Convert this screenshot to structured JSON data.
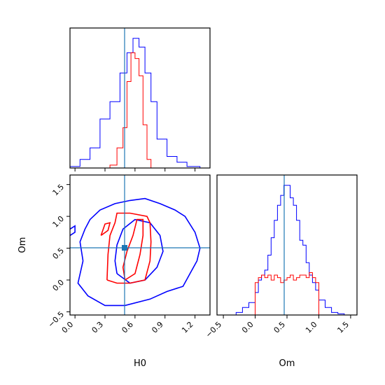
{
  "colors": {
    "series_a": "#0000ff",
    "series_b": "#ff0000",
    "truth": "#1f77b4",
    "frame": "#000000"
  },
  "chart_data": {
    "type": "corner",
    "parameters": [
      "H0",
      "Om"
    ],
    "truth": {
      "H0": 0.48,
      "Om": 0.5
    },
    "panels": [
      {
        "id": "hist_H0",
        "type": "histogram-step",
        "xlim": [
          -0.05,
          1.35
        ],
        "x_ticks": [
          0.0,
          0.3,
          0.6,
          0.9,
          1.2
        ],
        "show_tick_labels": false,
        "series": [
          {
            "color": "series_a",
            "edges": [
              -0.05,
              0.05,
              0.15,
              0.25,
              0.35,
              0.45,
              0.52,
              0.58,
              0.64,
              0.7,
              0.76,
              0.82,
              0.92,
              1.02,
              1.12,
              1.25
            ],
            "counts": [
              0.5,
              3,
              7,
              17,
              23,
              33,
              40,
              45,
              42,
              33,
              23,
              10,
              4,
              2,
              0.5
            ]
          },
          {
            "color": "series_b",
            "edges": [
              0.35,
              0.42,
              0.48,
              0.52,
              0.56,
              0.6,
              0.64,
              0.68,
              0.72,
              0.76
            ],
            "counts": [
              1,
              7,
              14,
              30,
              40,
              38,
              32,
              15,
              3
            ]
          }
        ]
      },
      {
        "id": "scatter_H0_Om",
        "type": "contour",
        "xlim": [
          -0.05,
          1.35
        ],
        "ylim": [
          -0.55,
          1.65
        ],
        "x_ticks": [
          "0.0",
          "0.3",
          "0.6",
          "0.9",
          "1.2"
        ],
        "y_ticks": [
          "−0.5",
          "0.0",
          "0.5",
          "1.0",
          "1.5"
        ],
        "xlabel": "H0",
        "ylabel": "Om",
        "contours": [
          {
            "color": "series_a",
            "level": "outer",
            "points": [
              [
                0.08,
                0.3
              ],
              [
                0.03,
                -0.05
              ],
              [
                0.13,
                -0.25
              ],
              [
                0.3,
                -0.4
              ],
              [
                0.5,
                -0.4
              ],
              [
                0.75,
                -0.3
              ],
              [
                0.92,
                -0.18
              ],
              [
                1.08,
                -0.1
              ],
              [
                1.15,
                0.1
              ],
              [
                1.22,
                0.3
              ],
              [
                1.25,
                0.5
              ],
              [
                1.2,
                0.75
              ],
              [
                1.1,
                1.0
              ],
              [
                1.0,
                1.1
              ],
              [
                0.85,
                1.2
              ],
              [
                0.7,
                1.28
              ],
              [
                0.55,
                1.25
              ],
              [
                0.4,
                1.2
              ],
              [
                0.25,
                1.1
              ],
              [
                0.15,
                0.95
              ],
              [
                0.1,
                0.8
              ],
              [
                0.05,
                0.6
              ],
              [
                0.08,
                0.3
              ]
            ]
          },
          {
            "color": "series_a",
            "level": "inner",
            "points": [
              [
                0.42,
                0.1
              ],
              [
                0.55,
                -0.05
              ],
              [
                0.7,
                0.0
              ],
              [
                0.82,
                0.2
              ],
              [
                0.88,
                0.45
              ],
              [
                0.85,
                0.7
              ],
              [
                0.75,
                0.9
              ],
              [
                0.6,
                0.95
              ],
              [
                0.48,
                0.8
              ],
              [
                0.42,
                0.55
              ],
              [
                0.4,
                0.3
              ],
              [
                0.42,
                0.1
              ]
            ]
          },
          {
            "color": "series_a",
            "level": "outer",
            "points": [
              [
                -0.05,
                0.8
              ],
              [
                0.0,
                0.85
              ],
              [
                0.0,
                0.75
              ],
              [
                -0.05,
                0.7
              ]
            ]
          },
          {
            "color": "series_b",
            "level": "outer",
            "points": [
              [
                0.32,
                0.0
              ],
              [
                0.42,
                -0.05
              ],
              [
                0.55,
                -0.05
              ],
              [
                0.7,
                0.0
              ],
              [
                0.75,
                0.3
              ],
              [
                0.76,
                0.6
              ],
              [
                0.75,
                0.9
              ],
              [
                0.72,
                1.0
              ],
              [
                0.55,
                1.05
              ],
              [
                0.42,
                1.05
              ],
              [
                0.4,
                0.9
              ],
              [
                0.35,
                0.7
              ],
              [
                0.33,
                0.4
              ],
              [
                0.32,
                0.0
              ]
            ]
          },
          {
            "color": "series_b",
            "level": "inner",
            "points": [
              [
                0.5,
                0.0
              ],
              [
                0.6,
                0.1
              ],
              [
                0.65,
                0.4
              ],
              [
                0.68,
                0.7
              ],
              [
                0.68,
                0.95
              ],
              [
                0.62,
                0.95
              ],
              [
                0.58,
                0.7
              ],
              [
                0.52,
                0.45
              ],
              [
                0.48,
                0.2
              ],
              [
                0.5,
                0.0
              ]
            ]
          },
          {
            "color": "series_b",
            "level": "inner",
            "points": [
              [
                0.26,
                0.7
              ],
              [
                0.33,
                0.78
              ],
              [
                0.35,
                0.9
              ],
              [
                0.3,
                0.88
              ],
              [
                0.26,
                0.7
              ]
            ]
          }
        ]
      },
      {
        "id": "hist_Om",
        "type": "histogram-step",
        "xlim": [
          -0.6,
          1.6
        ],
        "x_ticks": [
          "−0.5",
          "0.0",
          "0.5",
          "1.0",
          "1.5"
        ],
        "xlabel": "Om",
        "series": [
          {
            "color": "series_a",
            "edges": [
              -0.3,
              -0.2,
              -0.1,
              0.0,
              0.05,
              0.1,
              0.15,
              0.2,
              0.25,
              0.3,
              0.35,
              0.4,
              0.45,
              0.5,
              0.55,
              0.6,
              0.65,
              0.7,
              0.75,
              0.8,
              0.85,
              0.9,
              0.95,
              1.0,
              1.1,
              1.2,
              1.3,
              1.4
            ],
            "counts": [
              1,
              3,
              5,
              9,
              14,
              16,
              18,
              24,
              31,
              38,
              44,
              48,
              52,
              52,
              47,
              44,
              38,
              30,
              28,
              21,
              16,
              13,
              10,
              6,
              3,
              1,
              0.5
            ]
          },
          {
            "color": "series_b",
            "edges": [
              0.0,
              0.05,
              0.1,
              0.15,
              0.2,
              0.25,
              0.3,
              0.35,
              0.4,
              0.45,
              0.5,
              0.55,
              0.6,
              0.65,
              0.7,
              0.75,
              0.8,
              0.85,
              0.9,
              0.95,
              1.0
            ],
            "counts": [
              13,
              15,
              16,
              15,
              16,
              14,
              16,
              15,
              13,
              14,
              15,
              16,
              14,
              15,
              16,
              16,
              15,
              17,
              15,
              13
            ]
          }
        ]
      }
    ]
  }
}
